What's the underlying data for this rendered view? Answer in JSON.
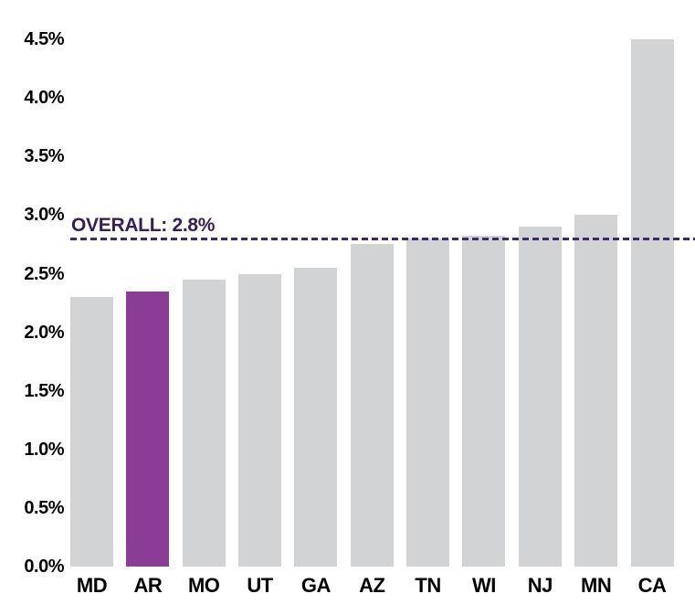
{
  "colors": {
    "bar_default": "#d2d3d4",
    "bar_highlight": "#8b3c96",
    "reference_line": "#3f2a68",
    "reference_text": "#362052",
    "axis_text": "#000000",
    "background": "#ffffff"
  },
  "chart_data": {
    "type": "bar",
    "categories": [
      "MD",
      "AR",
      "MO",
      "UT",
      "GA",
      "AZ",
      "TN",
      "WI",
      "NJ",
      "MN",
      "CA"
    ],
    "values": [
      2.3,
      2.35,
      2.45,
      2.5,
      2.55,
      2.75,
      2.8,
      2.82,
      2.9,
      3.0,
      4.5
    ],
    "highlighted_category": "AR",
    "y_ticks": [
      "4.5%",
      "4.0%",
      "3.5%",
      "3.0%",
      "2.5%",
      "2.0%",
      "1.5%",
      "1.0%",
      "0.5%",
      "0.0%"
    ],
    "y_tick_values": [
      4.5,
      4.0,
      3.5,
      3.0,
      2.5,
      2.0,
      1.5,
      1.0,
      0.5,
      0.0
    ],
    "ylim": [
      0,
      4.5
    ],
    "grid": false,
    "legend": false,
    "reference_line": {
      "label": "OVERALL: 2.8%",
      "value": 2.8
    }
  }
}
